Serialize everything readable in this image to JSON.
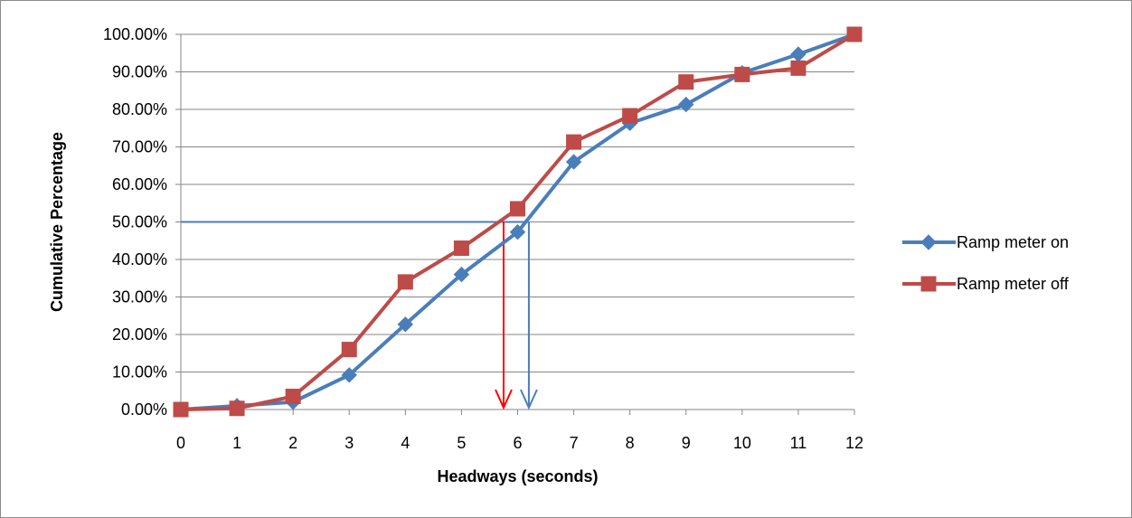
{
  "chart_data": {
    "type": "line",
    "title": "",
    "xlabel": "Headways (seconds)",
    "ylabel": "Cumulative Percentage",
    "x": [
      0,
      1,
      2,
      3,
      4,
      5,
      6,
      7,
      8,
      9,
      10,
      11,
      12
    ],
    "x_tick_labels": [
      "0",
      "1",
      "2",
      "3",
      "4",
      "5",
      "6",
      "7",
      "8",
      "9",
      "10",
      "11",
      "12"
    ],
    "y_tick_labels": [
      "0.00%",
      "10.00%",
      "20.00%",
      "30.00%",
      "40.00%",
      "50.00%",
      "60.00%",
      "70.00%",
      "80.00%",
      "90.00%",
      "100.00%"
    ],
    "xlim": [
      0,
      12
    ],
    "ylim": [
      0,
      1
    ],
    "grid": "horizontal",
    "legend_position": "right",
    "series": [
      {
        "name": "Ramp meter on",
        "color": "#4a7ebb",
        "marker": "diamond",
        "values": [
          0.0,
          0.01,
          0.02,
          0.092,
          0.227,
          0.36,
          0.473,
          0.66,
          0.763,
          0.813,
          0.897,
          0.947,
          1.0
        ]
      },
      {
        "name": "Ramp meter off",
        "color": "#be4b48",
        "marker": "square",
        "values": [
          0.0,
          0.003,
          0.035,
          0.16,
          0.34,
          0.43,
          0.535,
          0.713,
          0.783,
          0.873,
          0.893,
          0.91,
          1.0
        ]
      }
    ],
    "annotations": {
      "median_line": {
        "y": 0.5,
        "x_from": 0,
        "x_to": 6.2,
        "color": "#4a7ebb"
      },
      "arrows": [
        {
          "x": 5.75,
          "y_from": 0.5,
          "y_to": 0,
          "color": "#ff0000"
        },
        {
          "x": 6.2,
          "y_from": 0.5,
          "y_to": 0,
          "color": "#4a7ebb"
        }
      ]
    }
  }
}
